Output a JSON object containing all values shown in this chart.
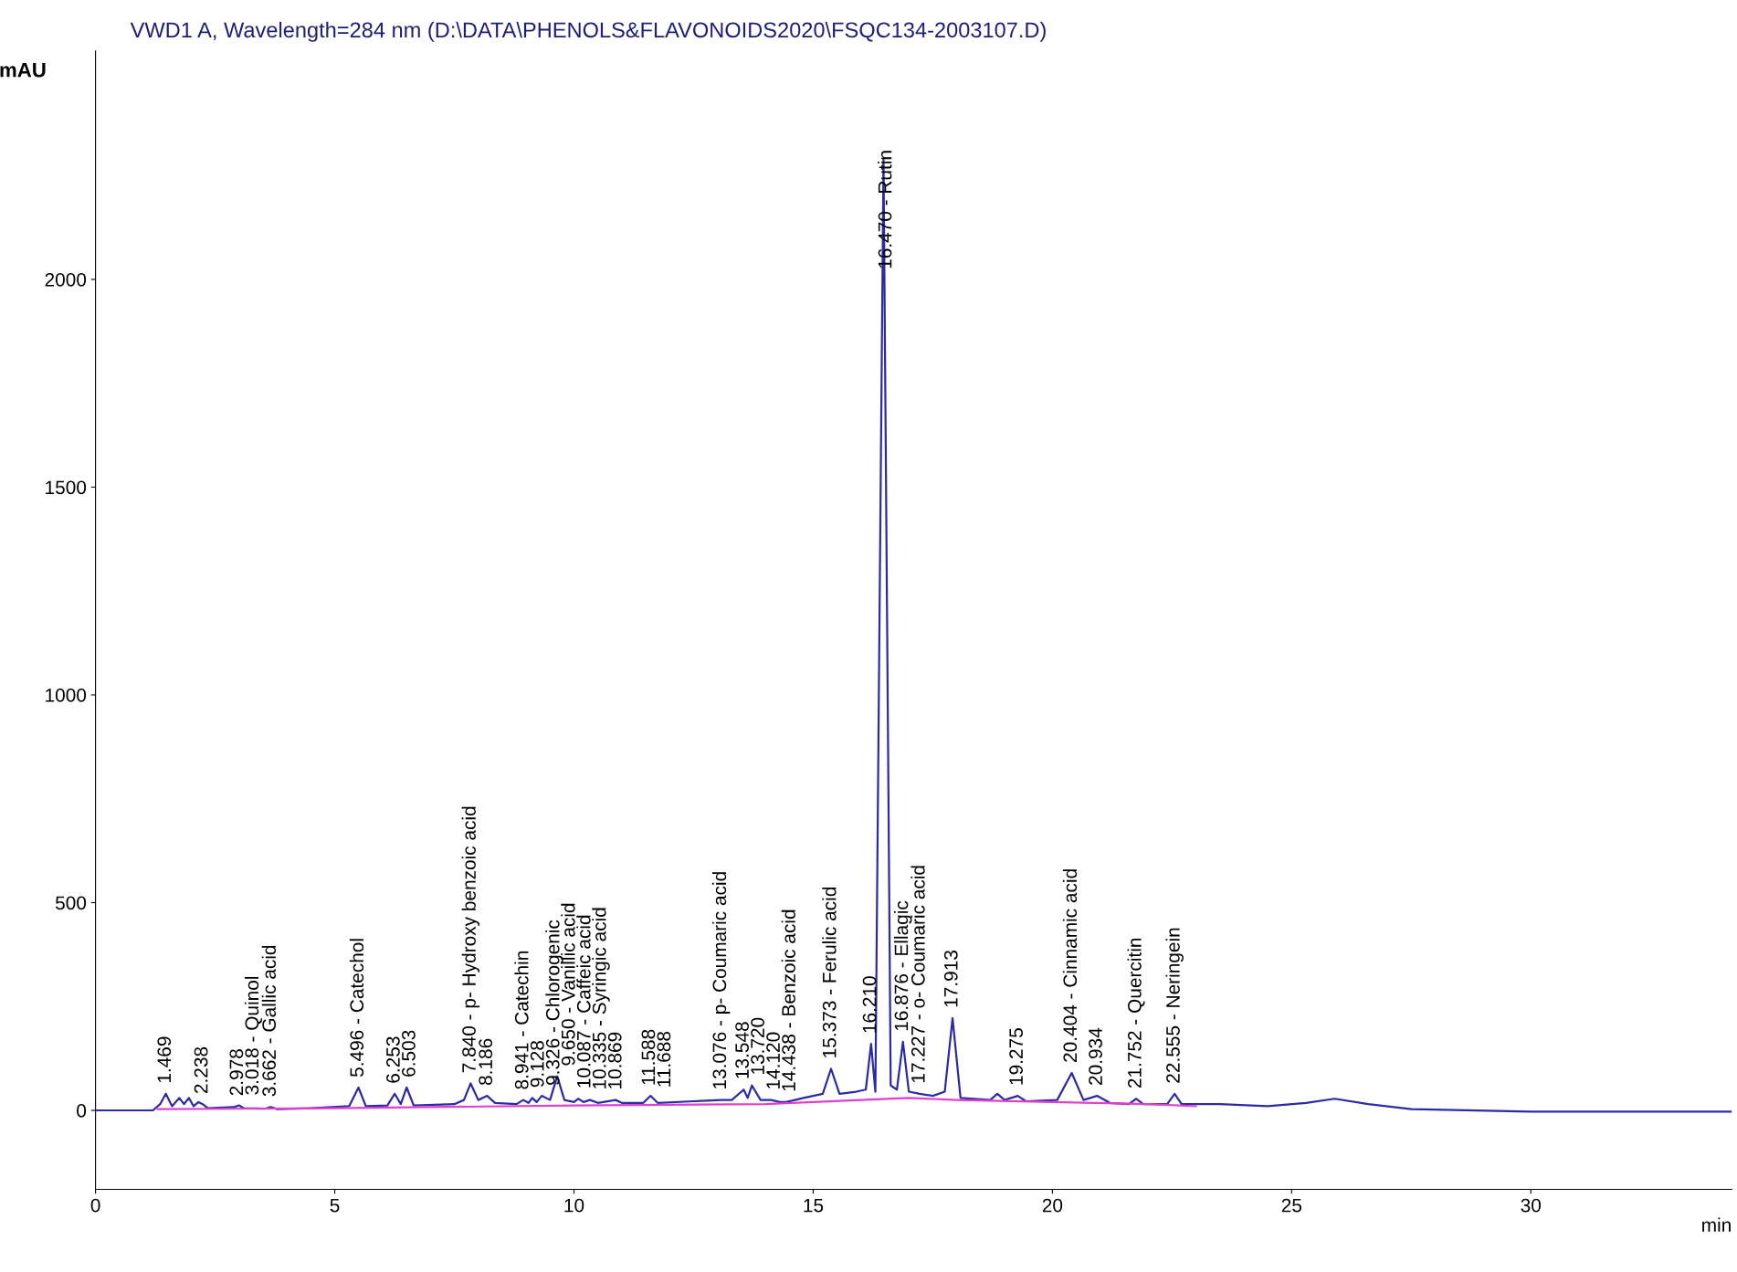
{
  "chart_data": {
    "type": "line",
    "title": "VWD1 A, Wavelength=284 nm (D:\\DATA\\PHENOLS&FLAVONOIDS2020\\FSQC134-2003107.D)",
    "xlabel": "min",
    "ylabel": "mAU",
    "xlim": [
      0,
      34.2
    ],
    "ylim": [
      -190,
      2550
    ],
    "xticks": [
      0,
      5,
      10,
      15,
      20,
      25,
      30
    ],
    "yticks": [
      0,
      500,
      1000,
      1500,
      2000
    ],
    "grid": false,
    "legend": false,
    "line_style": "solid",
    "marker": "none",
    "series": [
      {
        "color": "#2b2ba6",
        "x": [
          0,
          1.2,
          1.35,
          1.469,
          1.6,
          1.75,
          1.85,
          1.95,
          2.05,
          2.15,
          2.238,
          2.35,
          2.9,
          3.0,
          3.1,
          3.55,
          3.662,
          3.8,
          4.5,
          5.3,
          5.496,
          5.65,
          6.1,
          6.253,
          6.38,
          6.503,
          6.65,
          7.5,
          7.7,
          7.84,
          8.0,
          8.186,
          8.35,
          8.8,
          8.941,
          9.05,
          9.128,
          9.22,
          9.326,
          9.5,
          9.65,
          9.8,
          10.0,
          10.087,
          10.2,
          10.335,
          10.5,
          10.869,
          11.0,
          11.45,
          11.6,
          11.75,
          12.5,
          13.076,
          13.3,
          13.548,
          13.63,
          13.72,
          13.9,
          14.12,
          14.3,
          14.438,
          14.8,
          15.2,
          15.373,
          15.55,
          15.9,
          16.1,
          16.21,
          16.3,
          16.47,
          16.62,
          16.75,
          16.876,
          17.0,
          17.227,
          17.5,
          17.75,
          17.913,
          18.08,
          18.7,
          18.85,
          19.0,
          19.275,
          19.45,
          20.1,
          20.404,
          20.65,
          20.934,
          21.2,
          21.6,
          21.752,
          21.9,
          22.4,
          22.555,
          22.7,
          23.5,
          24.5,
          25.3,
          25.9,
          26.6,
          27.5,
          30,
          34.2
        ],
        "values": [
          0,
          0,
          15,
          40,
          10,
          30,
          15,
          30,
          10,
          20,
          15,
          5,
          8,
          12,
          5,
          4,
          8,
          3,
          5,
          10,
          55,
          10,
          12,
          40,
          15,
          55,
          12,
          15,
          25,
          65,
          25,
          35,
          18,
          15,
          25,
          18,
          30,
          20,
          35,
          25,
          82,
          25,
          20,
          28,
          20,
          25,
          18,
          25,
          18,
          18,
          35,
          18,
          22,
          25,
          25,
          50,
          30,
          60,
          25,
          25,
          20,
          20,
          30,
          40,
          100,
          40,
          45,
          50,
          160,
          45,
          2290,
          60,
          50,
          165,
          45,
          40,
          35,
          45,
          222,
          30,
          25,
          40,
          25,
          35,
          22,
          25,
          90,
          25,
          35,
          18,
          15,
          28,
          15,
          15,
          40,
          15,
          15,
          10,
          18,
          28,
          15,
          3,
          -3,
          -3
        ]
      },
      {
        "color": "#e040d0",
        "x": [
          1.3,
          5.0,
          10.0,
          14.0,
          16.0,
          17.0,
          18.0,
          20.0,
          22.0,
          23.0
        ],
        "values": [
          3,
          5,
          12,
          15,
          25,
          30,
          25,
          20,
          15,
          10
        ]
      }
    ],
    "annotations": [
      {
        "text": "1.469",
        "x": 1.469,
        "y": 40
      },
      {
        "text": "2.238",
        "x": 2.238,
        "y": 15
      },
      {
        "text": "2.978",
        "x": 2.978,
        "y": 10
      },
      {
        "text": "3.018 - Quinol",
        "x": 3.018,
        "y": 12
      },
      {
        "text": "3.662 - Gallic acid",
        "x": 3.662,
        "y": 8
      },
      {
        "text": "5.496 - Catechol",
        "x": 5.496,
        "y": 55
      },
      {
        "text": "6.253",
        "x": 6.253,
        "y": 40
      },
      {
        "text": "6.503",
        "x": 6.503,
        "y": 55
      },
      {
        "text": "7.840 - p- Hydroxy benzoic acid",
        "x": 7.84,
        "y": 65
      },
      {
        "text": "8.186",
        "x": 8.186,
        "y": 35
      },
      {
        "text": "8.941 - Catechin",
        "x": 8.941,
        "y": 25
      },
      {
        "text": "9.128",
        "x": 9.128,
        "y": 30
      },
      {
        "text": "9.326 - Chlorogenic",
        "x": 9.326,
        "y": 35
      },
      {
        "text": "9.650 - Vanillic acid",
        "x": 9.65,
        "y": 82
      },
      {
        "text": "10.087 - Caffeic acid",
        "x": 10.087,
        "y": 28
      },
      {
        "text": "10.335 - Syringic acid",
        "x": 10.335,
        "y": 25
      },
      {
        "text": "10.869",
        "x": 10.869,
        "y": 25
      },
      {
        "text": "11.588",
        "x": 11.588,
        "y": 35
      },
      {
        "text": "11.688",
        "x": 11.688,
        "y": 30
      },
      {
        "text": "13.076 - p- Coumaric acid",
        "x": 13.076,
        "y": 25
      },
      {
        "text": "13.548",
        "x": 13.548,
        "y": 50
      },
      {
        "text": "13.720",
        "x": 13.72,
        "y": 60
      },
      {
        "text": "14.120",
        "x": 14.12,
        "y": 25
      },
      {
        "text": "14.438 - Benzoic acid",
        "x": 14.438,
        "y": 20
      },
      {
        "text": "15.373 - Ferulic acid",
        "x": 15.373,
        "y": 100
      },
      {
        "text": "16.210",
        "x": 16.21,
        "y": 160
      },
      {
        "text": "16.470 - Rutin",
        "x": 16.47,
        "y": 2000
      },
      {
        "text": "16.876 - Ellagic",
        "x": 16.876,
        "y": 165
      },
      {
        "text": "17.227 - o- Coumaric acid",
        "x": 17.227,
        "y": 40
      },
      {
        "text": "17.913",
        "x": 17.913,
        "y": 222
      },
      {
        "text": "19.275",
        "x": 19.275,
        "y": 35
      },
      {
        "text": "20.404 - Cinnamic acid",
        "x": 20.404,
        "y": 90
      },
      {
        "text": "20.934",
        "x": 20.934,
        "y": 35
      },
      {
        "text": "21.752 - Quercitin",
        "x": 21.752,
        "y": 28
      },
      {
        "text": "22.555 - Neringein",
        "x": 22.555,
        "y": 40
      }
    ]
  }
}
